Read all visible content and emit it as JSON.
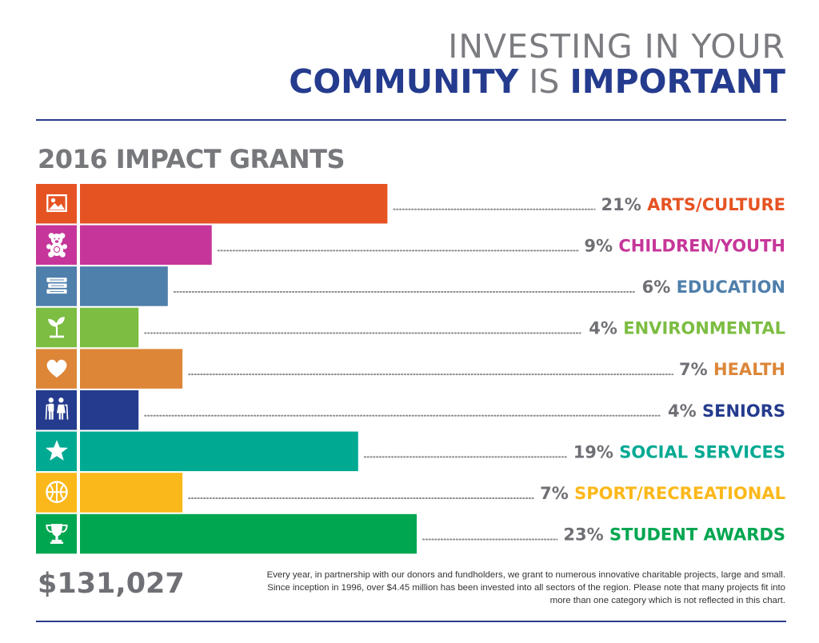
{
  "header": {
    "line1": "INVESTING IN  YOUR",
    "line2_word1": "COMMUNITY",
    "line2_word2": "IS",
    "line2_word3": "IMPORTANT"
  },
  "chart_data": {
    "type": "bar",
    "orientation": "horizontal",
    "title": "2016 IMPACT GRANTS",
    "unit": "%",
    "categories": [
      "ARTS/CULTURE",
      "CHILDREN/YOUTH",
      "EDUCATION",
      "ENVIRONMENTAL",
      "HEALTH",
      "SENIORS",
      "SOCIAL SERVICES",
      "SPORT/RECREATIONAL",
      "STUDENT AWARDS"
    ],
    "values": [
      21,
      9,
      6,
      4,
      7,
      4,
      19,
      7,
      23
    ],
    "value_labels": [
      "21%",
      "9%",
      "6%",
      "4%",
      "7%",
      "4%",
      "19%",
      "7%",
      "23%"
    ],
    "colors": [
      "#e65323",
      "#c6369a",
      "#4f7fab",
      "#7cbd42",
      "#dd8638",
      "#243b8e",
      "#00a992",
      "#fbb81a",
      "#00a650"
    ],
    "icons": [
      "picture-icon",
      "teddy-bear-icon",
      "books-icon",
      "sprout-icon",
      "heart-icon",
      "seniors-icon",
      "star-icon",
      "basketball-icon",
      "trophy-icon"
    ],
    "xlim": [
      0,
      23
    ],
    "label_color": "#6f7075"
  },
  "footer": {
    "total": "$131,027",
    "note": "Every year, in partnership with our donors and fundholders, we grant to numerous innovative charitable projects, large and small. Since inception in 1996, over $4.45 million has been invested into all sectors of the region. Please note that many projects fit into more than one category which is not reflected in this chart."
  }
}
